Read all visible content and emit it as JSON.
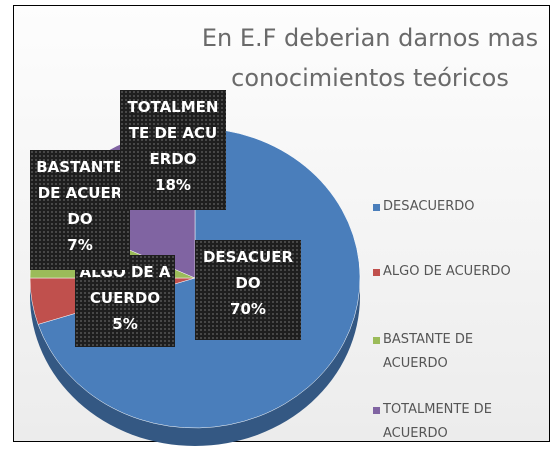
{
  "chart_data": {
    "type": "pie",
    "title": "En E.F deberian darnos mas conocimientos teóricos",
    "categories": [
      "DESACUERDO",
      "ALGO DE ACUERDO",
      "BASTANTE DE ACUERDO",
      "TOTALMENTE DE ACUERDO"
    ],
    "values": [
      70,
      5,
      7,
      18
    ],
    "value_labels": [
      "70%",
      "5%",
      "7%",
      "18%"
    ],
    "colors": [
      "#4a7ebb",
      "#c0504d",
      "#9bbb59",
      "#8064a2"
    ],
    "legend": "right"
  }
}
